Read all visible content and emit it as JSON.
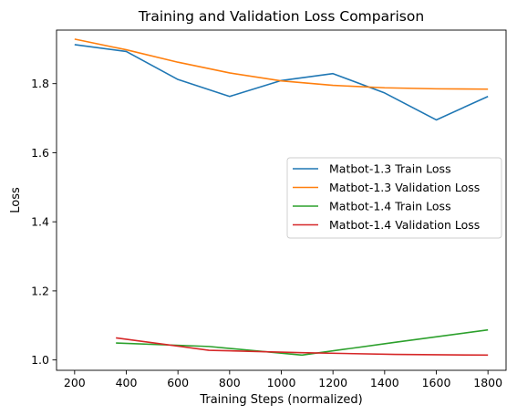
{
  "chart_data": {
    "type": "line",
    "title": "Training and Validation Loss Comparison",
    "xlabel": "Training Steps (normalized)",
    "ylabel": "Loss",
    "xlim": [
      130,
      1870
    ],
    "ylim": [
      0.97,
      1.955
    ],
    "xticks": [
      200,
      400,
      600,
      800,
      1000,
      1200,
      1400,
      1600,
      1800
    ],
    "yticks": [
      1.0,
      1.2,
      1.4,
      1.6,
      1.8
    ],
    "ytick_labels": [
      "1.0",
      "1.2",
      "1.4",
      "1.6",
      "1.8"
    ],
    "grid": false,
    "legend_position": "center-right",
    "series": [
      {
        "name": "Matbot-1.3 Train Loss",
        "color": "#1f77b4",
        "x": [
          200,
          400,
          600,
          800,
          1000,
          1200,
          1400,
          1600,
          1800
        ],
        "y": [
          1.913,
          1.893,
          1.812,
          1.763,
          1.809,
          1.829,
          1.773,
          1.695,
          1.763
        ]
      },
      {
        "name": "Matbot-1.3 Validation Loss",
        "color": "#ff7f0e",
        "x": [
          200,
          400,
          600,
          800,
          1000,
          1200,
          1400,
          1600,
          1800
        ],
        "y": [
          1.929,
          1.898,
          1.862,
          1.831,
          1.808,
          1.795,
          1.788,
          1.785,
          1.784
        ]
      },
      {
        "name": "Matbot-1.4 Train Loss",
        "color": "#2ca02c",
        "x": [
          360,
          720,
          1080,
          1440,
          1800
        ],
        "y": [
          1.049,
          1.039,
          1.014,
          1.051,
          1.087
        ]
      },
      {
        "name": "Matbot-1.4 Validation Loss",
        "color": "#d62728",
        "x": [
          360,
          720,
          1080,
          1440,
          1800
        ],
        "y": [
          1.064,
          1.028,
          1.021,
          1.016,
          1.014
        ]
      }
    ]
  }
}
